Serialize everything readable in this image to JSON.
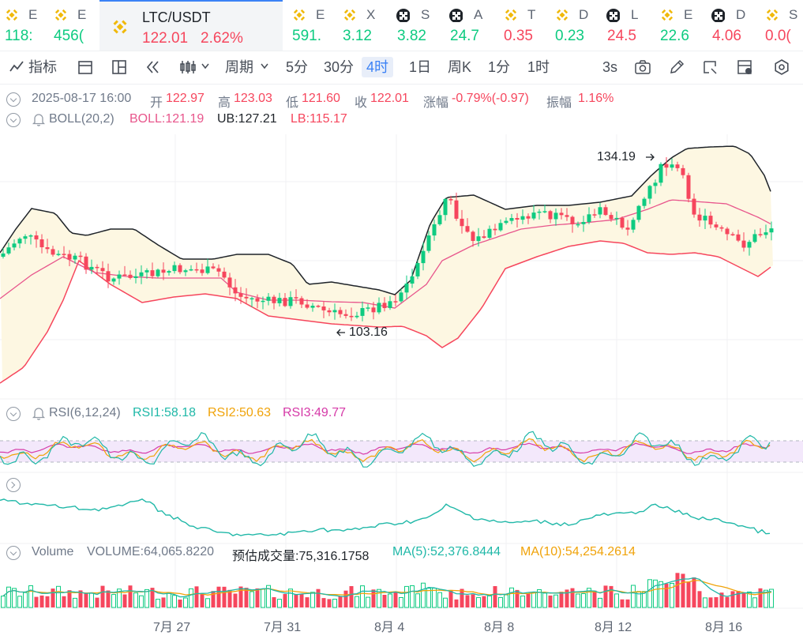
{
  "tickers": [
    {
      "name": "E",
      "price": "118:",
      "color": "green",
      "icon": "binance-coin-icon"
    },
    {
      "name": "E",
      "price": "456(",
      "color": "green",
      "icon": "binance-coin-icon"
    },
    {
      "name": "E",
      "price": "591.",
      "color": "green",
      "icon": "binance-coin-icon"
    },
    {
      "name": "X",
      "price": "3.12",
      "color": "green",
      "icon": "binance-coin-icon"
    },
    {
      "name": "S",
      "price": "3.82",
      "color": "green",
      "icon": "checker-coin-icon"
    },
    {
      "name": "A",
      "price": "24.7",
      "color": "green",
      "icon": "checker-coin-icon"
    },
    {
      "name": "T",
      "price": "0.35",
      "color": "red",
      "icon": "binance-coin-icon"
    },
    {
      "name": "D",
      "price": "0.23",
      "color": "green",
      "icon": "binance-coin-icon"
    },
    {
      "name": "L",
      "price": "24.5",
      "color": "red",
      "icon": "checker-coin-icon"
    },
    {
      "name": "E",
      "price": "22.6",
      "color": "green",
      "icon": "binance-coin-icon"
    },
    {
      "name": "D",
      "price": "4.06",
      "color": "red",
      "icon": "checker-coin-icon"
    },
    {
      "name": "S",
      "price": "0.0(",
      "color": "red",
      "icon": "binance-coin-icon"
    }
  ],
  "active_ticker": {
    "pair": "LTC/USDT",
    "price": "122.01",
    "change": "2.62%",
    "icon": "binance-coin-icon"
  },
  "toolbar": {
    "indicators": "指标",
    "period": "周期",
    "intervals": [
      "5分",
      "30分",
      "4时",
      "1日",
      "周K",
      "1分",
      "1时"
    ],
    "selected_interval": "4时",
    "refresh": "3s"
  },
  "ohlc": {
    "date": "2025-08-17 16:00",
    "open_label": "开",
    "open": "122.97",
    "high_label": "高",
    "high": "123.03",
    "low_label": "低",
    "low": "121.60",
    "close_label": "收",
    "close": "122.01",
    "change_label": "涨幅",
    "change": "-0.79%(-0.97)",
    "amp_label": "振幅",
    "amp": "1.16%"
  },
  "boll": {
    "name": "BOLL(20,2)",
    "mid": "BOLL:121.19",
    "ub": "UB:127.21",
    "lb": "LB:115.17"
  },
  "price_marks": {
    "high": "134.19",
    "low": "103.16"
  },
  "rsi": {
    "name": "RSI(6,12,24)",
    "rsi1": "RSI1:58.18",
    "rsi2": "RSI2:50.63",
    "rsi3": "RSI3:49.77"
  },
  "volume": {
    "name": "Volume",
    "vol": "VOLUME:64,065.8220",
    "est": "预估成交量:75,316.1758",
    "ma5": "MA(5):52,376.8444",
    "ma10": "MA(10):54,254.2614"
  },
  "x_labels": [
    "7月 27",
    "7月 31",
    "8月 4",
    "8月 8",
    "8月 12",
    "8月 16"
  ],
  "colors": {
    "up": "#0ecb81",
    "down": "#f6465d",
    "accent": "#3b82f6",
    "boll_mid": "#e8568c",
    "ub": "#1e2329",
    "lb": "#f6465d"
  }
}
